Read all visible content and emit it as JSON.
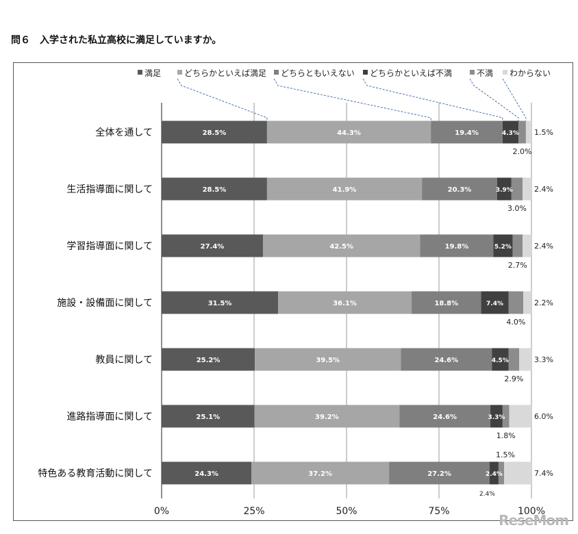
{
  "question": "問６　入学された私立高校に満足していますか。",
  "watermark": "ReseMom",
  "chart_data": {
    "type": "bar",
    "orientation": "horizontal",
    "stacked": true,
    "percent_stacked": true,
    "categories": [
      "全体を通して",
      "生活指導面に関して",
      "学習指導面に関して",
      "施設・設備面に関して",
      "教員に関して",
      "進路指導面に関して",
      "特色ある教育活動に関して"
    ],
    "series": [
      {
        "name": "満足",
        "color": "#595959",
        "values": [
          28.5,
          28.5,
          27.4,
          31.5,
          25.2,
          25.1,
          24.3
        ]
      },
      {
        "name": "どちらかといえば満足",
        "color": "#a6a6a6",
        "values": [
          44.3,
          41.9,
          42.5,
          36.1,
          39.5,
          39.2,
          37.2
        ]
      },
      {
        "name": "どちらともいえない",
        "color": "#7f7f7f",
        "values": [
          19.4,
          20.3,
          19.8,
          18.8,
          24.6,
          24.6,
          27.2
        ]
      },
      {
        "name": "どちらかといえば不満",
        "color": "#404040",
        "values": [
          4.3,
          3.9,
          5.2,
          7.4,
          4.5,
          3.3,
          2.4
        ]
      },
      {
        "name": "不満",
        "color": "#8c8c8c",
        "values": [
          2.0,
          3.0,
          2.7,
          4.0,
          2.9,
          1.8,
          1.5
        ]
      },
      {
        "name": "わからない",
        "color": "#d9d9d9",
        "values": [
          1.5,
          2.4,
          2.4,
          2.2,
          3.3,
          6.0,
          7.4
        ]
      }
    ],
    "xlim": [
      0,
      100
    ],
    "xticks": [
      "0%",
      "25%",
      "50%",
      "75%",
      "100%"
    ],
    "grid": true,
    "legend_position": "top"
  }
}
